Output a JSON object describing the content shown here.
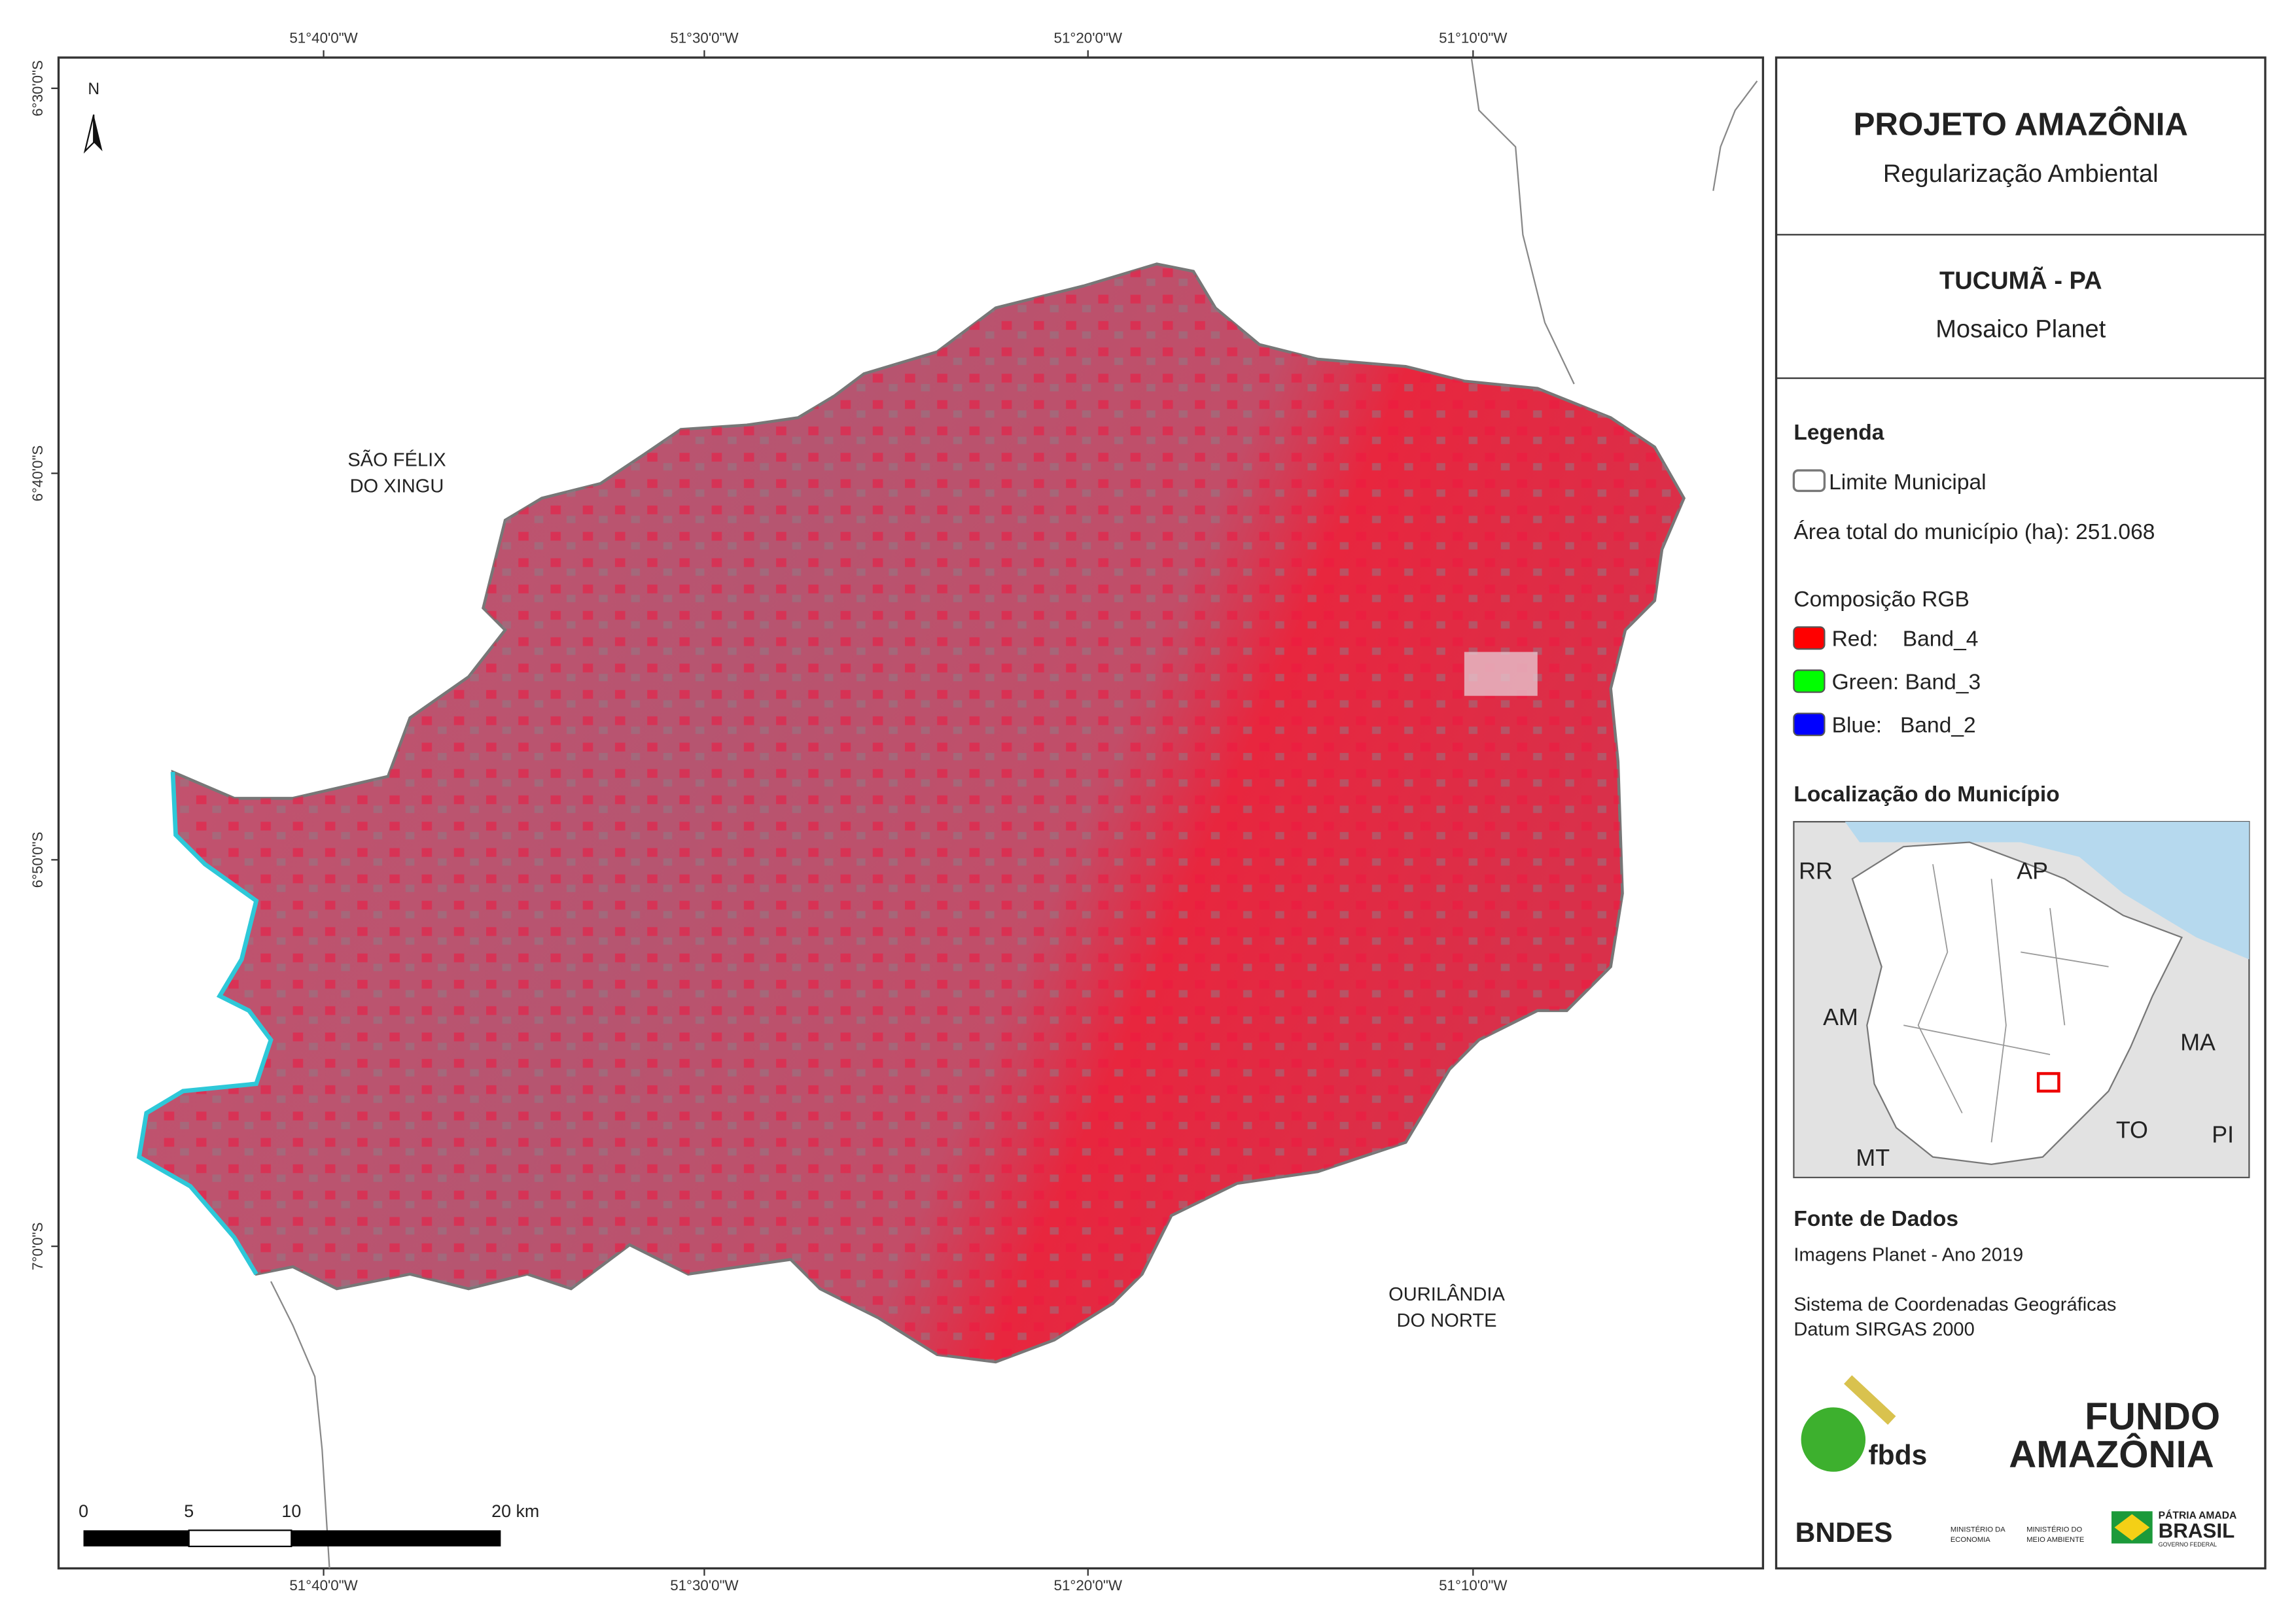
{
  "map": {
    "top_coords": [
      "51°40'0\"W",
      "51°30'0\"W",
      "51°20'0\"W",
      "51°10'0\"W"
    ],
    "left_coords": [
      "6°30'0\"S",
      "6°40'0\"S",
      "6°50'0\"S",
      "7°0'0\"S"
    ],
    "north": "N",
    "places": [
      [
        "SÃO FÉLIX",
        "DO XINGU"
      ],
      [
        "OURILÂNDIA",
        "DO NORTE"
      ]
    ],
    "scale_labels": [
      "0",
      "5",
      "10",
      "20 km"
    ]
  },
  "panel": {
    "title": "PROJETO AMAZÔNIA",
    "subtitle": "Regularização Ambiental",
    "place": "TUCUMÃ - PA",
    "mosaic": "Mosaico Planet",
    "legend_title": "Legenda",
    "limit": "Limite Municipal",
    "area": "Área total do município (ha): 251.068",
    "rgb_title": "Composição RGB",
    "bands": [
      {
        "label": "Red:    Band_4",
        "color": "#ff0000"
      },
      {
        "label": "Green: Band_3",
        "color": "#00ff00"
      },
      {
        "label": "Blue:   Band_2",
        "color": "#0000ff"
      }
    ],
    "location_title": "Localização do Município",
    "states": [
      "RR",
      "AP",
      "AM",
      "MA",
      "TO",
      "MT",
      "PI"
    ],
    "sources_title": "Fonte de Dados",
    "sources": [
      "Imagens Planet - Ano 2019",
      "Sistema de Coordenadas Geográficas",
      "Datum SIRGAS 2000"
    ],
    "logos": {
      "fbds": "fbds",
      "fundo": "FUNDO",
      "amazonia": "AMAZÔNIA",
      "bndes": "BNDES",
      "min_eco": [
        "MINISTÉRIO DA",
        "ECONOMIA"
      ],
      "min_env": [
        "MINISTÉRIO DO",
        "MEIO AMBIENTE"
      ],
      "patria": "PÁTRIA AMADA",
      "brasil": "BRASIL",
      "gov": "GOVERNO FEDERAL"
    }
  }
}
